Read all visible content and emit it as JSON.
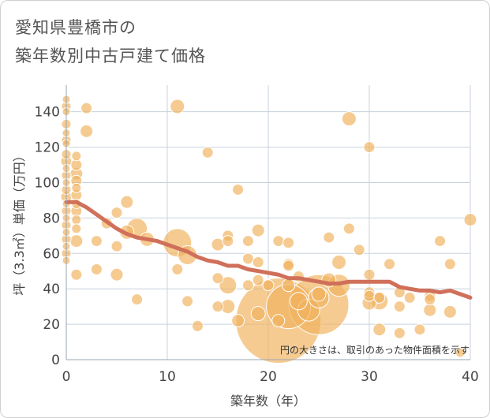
{
  "title_line1": "愛知県豊橋市の",
  "title_line2": "築年数別中古戸建て価格",
  "chart_data": {
    "type": "scatter",
    "title": "愛知県豊橋市の築年数別中古戸建て価格",
    "xlabel": "築年数（年）",
    "ylabel": "坪（3.3㎡）単価（万円）",
    "xlim": [
      0,
      40
    ],
    "ylim": [
      0,
      155
    ],
    "xticks": [
      0,
      10,
      20,
      30,
      40
    ],
    "yticks": [
      0,
      20,
      40,
      60,
      80,
      100,
      120,
      140
    ],
    "grid": true,
    "annotation": "円の大きさは、取引のあった物件面積を示す",
    "colors": {
      "bubble": "#f0b25e",
      "trend": "#d0705a",
      "grid": "#c8d2dc"
    },
    "trend_line": {
      "x": [
        0,
        1,
        2,
        3,
        4,
        5,
        6,
        7,
        8,
        9,
        10,
        11,
        12,
        13,
        14,
        15,
        16,
        17,
        18,
        19,
        20,
        21,
        22,
        23,
        24,
        25,
        26,
        27,
        28,
        29,
        30,
        31,
        32,
        33,
        34,
        35,
        36,
        37,
        38,
        39,
        40
      ],
      "y": [
        89,
        89,
        86,
        82,
        78,
        74,
        71,
        69,
        68,
        67,
        65,
        63,
        61,
        58,
        56,
        55,
        53,
        53,
        51,
        50,
        49,
        48,
        46,
        46,
        45,
        44,
        43,
        43,
        44,
        44,
        44,
        44,
        44,
        41,
        40,
        39,
        39,
        38,
        39,
        37,
        35
      ]
    },
    "points": [
      {
        "x": 0,
        "y": 147,
        "s": 5
      },
      {
        "x": 0,
        "y": 143,
        "s": 6
      },
      {
        "x": 0,
        "y": 140,
        "s": 5
      },
      {
        "x": 0,
        "y": 133,
        "s": 6
      },
      {
        "x": 0,
        "y": 128,
        "s": 5
      },
      {
        "x": 0,
        "y": 124,
        "s": 6
      },
      {
        "x": 0,
        "y": 122,
        "s": 5
      },
      {
        "x": 0,
        "y": 116,
        "s": 6
      },
      {
        "x": 0,
        "y": 112,
        "s": 7
      },
      {
        "x": 0,
        "y": 108,
        "s": 5
      },
      {
        "x": 0,
        "y": 104,
        "s": 6
      },
      {
        "x": 0,
        "y": 100,
        "s": 5
      },
      {
        "x": 0,
        "y": 96,
        "s": 6
      },
      {
        "x": 0,
        "y": 92,
        "s": 7
      },
      {
        "x": 0,
        "y": 88,
        "s": 5
      },
      {
        "x": 0,
        "y": 84,
        "s": 6
      },
      {
        "x": 0,
        "y": 80,
        "s": 5
      },
      {
        "x": 0,
        "y": 76,
        "s": 6
      },
      {
        "x": 0,
        "y": 72,
        "s": 5
      },
      {
        "x": 0,
        "y": 68,
        "s": 6
      },
      {
        "x": 0,
        "y": 64,
        "s": 5
      },
      {
        "x": 0,
        "y": 60,
        "s": 6
      },
      {
        "x": 0,
        "y": 56,
        "s": 5
      },
      {
        "x": 1,
        "y": 115,
        "s": 6
      },
      {
        "x": 1,
        "y": 110,
        "s": 7
      },
      {
        "x": 1,
        "y": 105,
        "s": 8
      },
      {
        "x": 1,
        "y": 101,
        "s": 7
      },
      {
        "x": 1,
        "y": 97,
        "s": 6
      },
      {
        "x": 1,
        "y": 93,
        "s": 7
      },
      {
        "x": 1,
        "y": 88,
        "s": 6
      },
      {
        "x": 1,
        "y": 84,
        "s": 7
      },
      {
        "x": 1,
        "y": 79,
        "s": 6
      },
      {
        "x": 1,
        "y": 74,
        "s": 6
      },
      {
        "x": 1,
        "y": 67,
        "s": 8
      },
      {
        "x": 1,
        "y": 48,
        "s": 7
      },
      {
        "x": 2,
        "y": 142,
        "s": 7
      },
      {
        "x": 2,
        "y": 129,
        "s": 8
      },
      {
        "x": 3,
        "y": 67,
        "s": 7
      },
      {
        "x": 3,
        "y": 51,
        "s": 7
      },
      {
        "x": 4,
        "y": 77,
        "s": 7
      },
      {
        "x": 5,
        "y": 83,
        "s": 7
      },
      {
        "x": 5,
        "y": 64,
        "s": 7
      },
      {
        "x": 5,
        "y": 48,
        "s": 8
      },
      {
        "x": 6,
        "y": 89,
        "s": 8
      },
      {
        "x": 6,
        "y": 72,
        "s": 9
      },
      {
        "x": 7,
        "y": 74,
        "s": 13
      },
      {
        "x": 7,
        "y": 34,
        "s": 7
      },
      {
        "x": 8,
        "y": 68,
        "s": 9
      },
      {
        "x": 11,
        "y": 143,
        "s": 9
      },
      {
        "x": 11,
        "y": 66,
        "s": 18
      },
      {
        "x": 11,
        "y": 51,
        "s": 7
      },
      {
        "x": 12,
        "y": 59,
        "s": 12
      },
      {
        "x": 12,
        "y": 33,
        "s": 7
      },
      {
        "x": 13,
        "y": 19,
        "s": 7
      },
      {
        "x": 14,
        "y": 117,
        "s": 7
      },
      {
        "x": 15,
        "y": 65,
        "s": 8
      },
      {
        "x": 15,
        "y": 46,
        "s": 7
      },
      {
        "x": 15,
        "y": 30,
        "s": 7
      },
      {
        "x": 16,
        "y": 70,
        "s": 7
      },
      {
        "x": 16,
        "y": 67,
        "s": 7
      },
      {
        "x": 16,
        "y": 42,
        "s": 11
      },
      {
        "x": 16,
        "y": 30,
        "s": 9
      },
      {
        "x": 17,
        "y": 96,
        "s": 7
      },
      {
        "x": 17,
        "y": 22,
        "s": 8
      },
      {
        "x": 18,
        "y": 67,
        "s": 7
      },
      {
        "x": 18,
        "y": 57,
        "s": 7
      },
      {
        "x": 18,
        "y": 42,
        "s": 7
      },
      {
        "x": 19,
        "y": 73,
        "s": 8
      },
      {
        "x": 19,
        "y": 55,
        "s": 7
      },
      {
        "x": 19,
        "y": 45,
        "s": 7
      },
      {
        "x": 19,
        "y": 26,
        "s": 9
      },
      {
        "x": 20,
        "y": 42,
        "s": 7
      },
      {
        "x": 21,
        "y": 67,
        "s": 7
      },
      {
        "x": 21,
        "y": 22,
        "s": 54
      },
      {
        "x": 21,
        "y": 22,
        "s": 8
      },
      {
        "x": 22,
        "y": 66,
        "s": 7
      },
      {
        "x": 22,
        "y": 54,
        "s": 7
      },
      {
        "x": 22,
        "y": 53,
        "s": 7
      },
      {
        "x": 22,
        "y": 42,
        "s": 8
      },
      {
        "x": 22,
        "y": 30,
        "s": 28
      },
      {
        "x": 23,
        "y": 47,
        "s": 7
      },
      {
        "x": 23,
        "y": 33,
        "s": 11
      },
      {
        "x": 24,
        "y": 28,
        "s": 14
      },
      {
        "x": 25,
        "y": 37,
        "s": 9
      },
      {
        "x": 25,
        "y": 35,
        "s": 13
      },
      {
        "x": 25,
        "y": 31,
        "s": 38
      },
      {
        "x": 26,
        "y": 69,
        "s": 7
      },
      {
        "x": 26,
        "y": 45,
        "s": 9
      },
      {
        "x": 27,
        "y": 55,
        "s": 9
      },
      {
        "x": 27,
        "y": 42,
        "s": 14
      },
      {
        "x": 28,
        "y": 136,
        "s": 9
      },
      {
        "x": 28,
        "y": 74,
        "s": 7
      },
      {
        "x": 29,
        "y": 62,
        "s": 7
      },
      {
        "x": 30,
        "y": 120,
        "s": 7
      },
      {
        "x": 30,
        "y": 48,
        "s": 7
      },
      {
        "x": 30,
        "y": 38,
        "s": 7
      },
      {
        "x": 30,
        "y": 36,
        "s": 7
      },
      {
        "x": 30,
        "y": 32,
        "s": 9
      },
      {
        "x": 31,
        "y": 35,
        "s": 7
      },
      {
        "x": 31,
        "y": 33,
        "s": 11
      },
      {
        "x": 31,
        "y": 17,
        "s": 8
      },
      {
        "x": 32,
        "y": 54,
        "s": 7
      },
      {
        "x": 33,
        "y": 38,
        "s": 7
      },
      {
        "x": 33,
        "y": 30,
        "s": 7
      },
      {
        "x": 33,
        "y": 15,
        "s": 7
      },
      {
        "x": 34,
        "y": 35,
        "s": 7
      },
      {
        "x": 35,
        "y": 17,
        "s": 7
      },
      {
        "x": 36,
        "y": 36,
        "s": 7
      },
      {
        "x": 36,
        "y": 34,
        "s": 7
      },
      {
        "x": 36,
        "y": 28,
        "s": 8
      },
      {
        "x": 37,
        "y": 67,
        "s": 7
      },
      {
        "x": 38,
        "y": 54,
        "s": 7
      },
      {
        "x": 38,
        "y": 27,
        "s": 8
      },
      {
        "x": 39,
        "y": 4,
        "s": 6
      },
      {
        "x": 40,
        "y": 79,
        "s": 8
      }
    ]
  }
}
